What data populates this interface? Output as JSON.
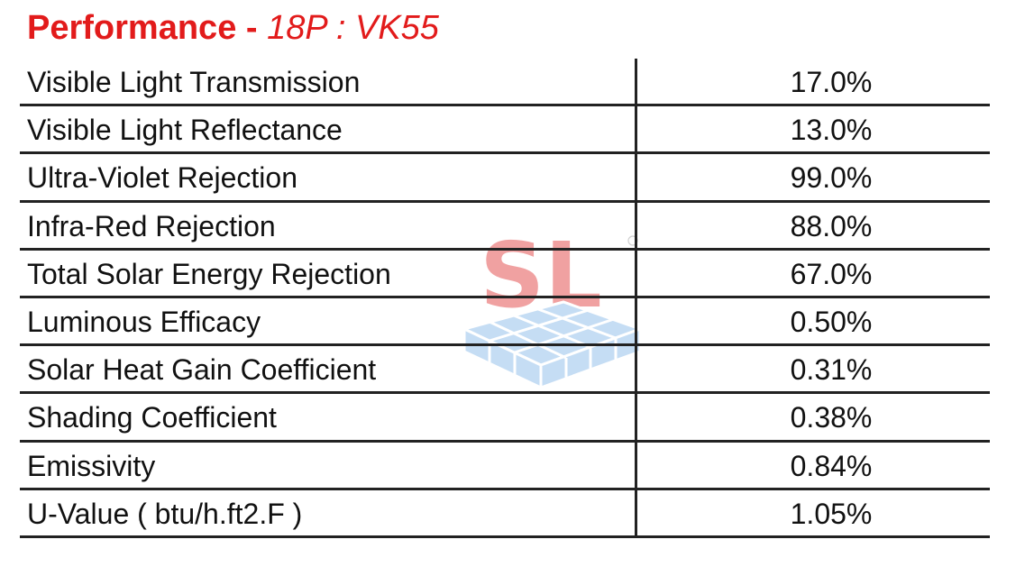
{
  "header": {
    "title": "Performance - ",
    "subtitle": "18P : VK55"
  },
  "logo": {
    "text": "SL"
  },
  "table": {
    "rows": [
      [
        "Visible Light Transmission",
        "17.0%"
      ],
      [
        "Visible Light Reflectance",
        "13.0%"
      ],
      [
        "Ultra-Violet Rejection",
        "99.0%"
      ],
      [
        "Infra-Red Rejection",
        "88.0%"
      ],
      [
        "Total Solar Energy Rejection",
        "67.0%"
      ],
      [
        "Luminous Efficacy",
        "0.50%"
      ],
      [
        "Solar Heat Gain Coefficient",
        "0.31%"
      ],
      [
        "Shading Coefficient",
        "0.38%"
      ],
      [
        "Emissivity",
        "0.84%"
      ],
      [
        "U-Value ( btu/h.ft2.F )",
        "1.05%"
      ]
    ]
  }
}
